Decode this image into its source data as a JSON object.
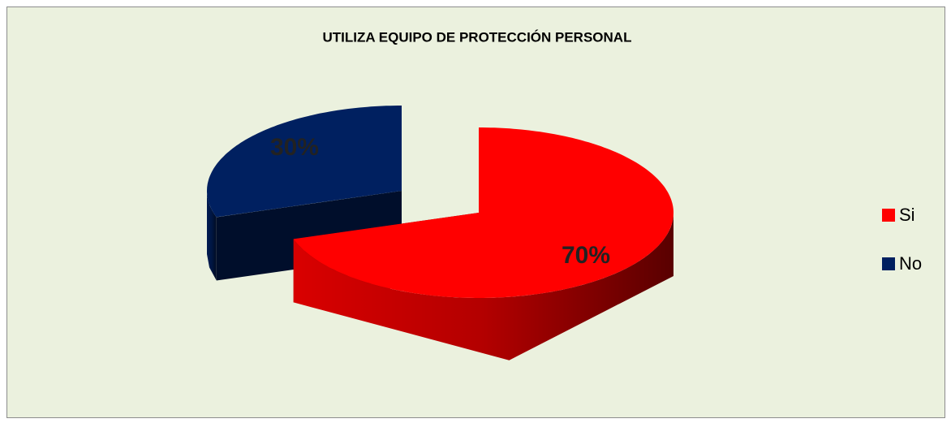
{
  "chart_data": {
    "type": "pie",
    "title": "UTILIZA EQUIPO DE PROTECCIÓN PERSONAL",
    "categories": [
      "Si",
      "No"
    ],
    "values": [
      70,
      30
    ],
    "value_labels": [
      "70%",
      "30%"
    ],
    "colors": [
      "#ff0000",
      "#002060"
    ],
    "legend": "right"
  }
}
